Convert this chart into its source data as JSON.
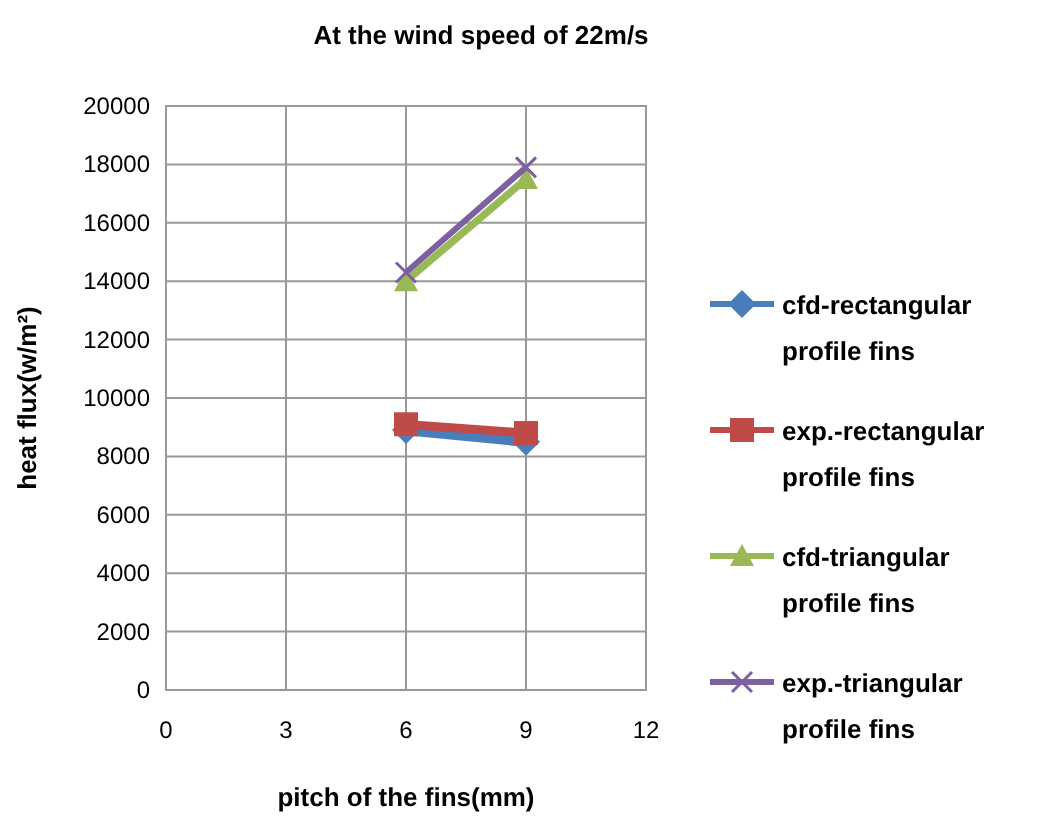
{
  "chart_data": {
    "type": "line",
    "title": "At the wind speed of 22m/s",
    "xlabel": "pitch of the fins(mm)",
    "ylabel": "heat flux(w/m²)",
    "x": [
      6,
      9
    ],
    "xlim": [
      0,
      12
    ],
    "xticks": [
      0,
      3,
      6,
      9,
      12
    ],
    "ylim": [
      0,
      20000
    ],
    "yticks": [
      0,
      2000,
      4000,
      6000,
      8000,
      10000,
      12000,
      14000,
      16000,
      18000,
      20000
    ],
    "grid": true,
    "legend": "right",
    "line_style": "solid",
    "series": [
      {
        "name": "cfd-rectangular profile fins",
        "color": "#4a7ebb",
        "marker": "diamond",
        "values": [
          8900,
          8500
        ]
      },
      {
        "name": "exp.-rectangular profile fins",
        "color": "#be4b48",
        "marker": "square",
        "values": [
          9100,
          8800
        ]
      },
      {
        "name": "cfd-triangular profile fins",
        "color": "#98b954",
        "marker": "triangle",
        "values": [
          14000,
          17500
        ]
      },
      {
        "name": "exp.-triangular profile fins",
        "color": "#7d60a0",
        "marker": "cross",
        "values": [
          14300,
          17900
        ]
      }
    ]
  }
}
